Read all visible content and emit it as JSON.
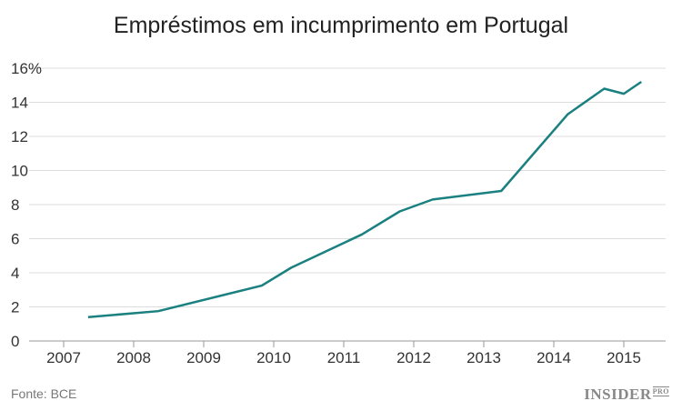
{
  "chart_data": {
    "type": "line",
    "title": "Empréstimos em incumprimento em Portugal",
    "xlabel": "",
    "ylabel": "",
    "xlim": [
      2006.7,
      2015.6
    ],
    "ylim": [
      0,
      16
    ],
    "x_ticks": [
      "2007",
      "2008",
      "2009",
      "2010",
      "2011",
      "2012",
      "2013",
      "2014",
      "2015"
    ],
    "y_ticks": [
      "0",
      "2",
      "4",
      "6",
      "8",
      "10",
      "12",
      "14",
      "16%"
    ],
    "grid": true,
    "line_color": "#1a8080",
    "series": [
      {
        "x": [
          2007.35,
          2008.35,
          2009.83,
          2010.25,
          2011.26,
          2011.8,
          2012.27,
          2013.25,
          2014.2,
          2014.72,
          2015.0,
          2015.25
        ],
        "values": [
          1.4,
          1.75,
          3.25,
          4.3,
          6.25,
          7.6,
          8.3,
          8.8,
          13.3,
          14.8,
          14.5,
          15.2
        ]
      }
    ]
  },
  "source": "Fonte: BCE",
  "logo": {
    "text": "INSIDER",
    "suffix": "PRO"
  }
}
